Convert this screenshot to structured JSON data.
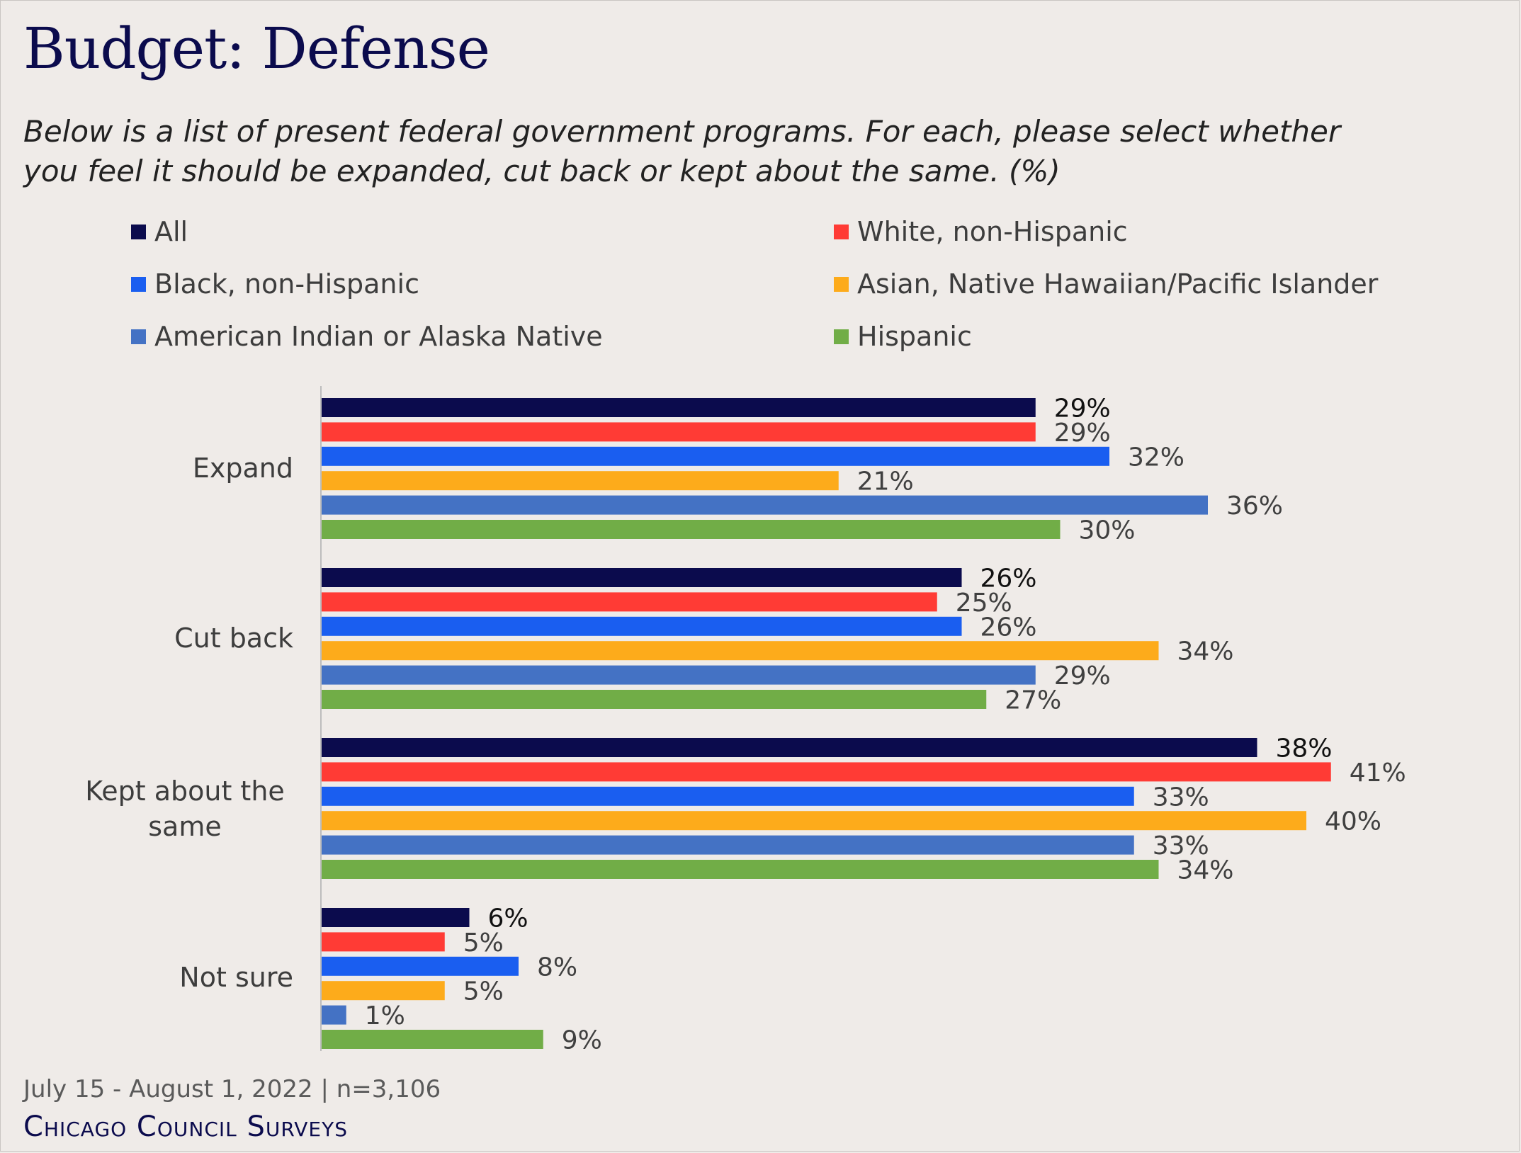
{
  "title": "Budget: Defense",
  "subtitle_lines": [
    "Below is a list of present federal government programs. For each, please select whether",
    "you feel it should be expanded, cut back or kept about the same. (%)"
  ],
  "footer": {
    "date_sample": "July 15 - August 1, 2022 | n=3,106",
    "brand": "Chicago Council Surveys"
  },
  "chart_data": {
    "type": "bar",
    "orientation": "horizontal",
    "categories": [
      "Expand",
      "Cut back",
      "Kept about the same",
      "Not sure"
    ],
    "series": [
      {
        "name": "All",
        "color": "#0b0b4d",
        "values": [
          29,
          26,
          38,
          6
        ]
      },
      {
        "name": "White, non-Hispanic",
        "color": "#ff3b35",
        "values": [
          29,
          25,
          41,
          5
        ]
      },
      {
        "name": "Black, non-Hispanic",
        "color": "#1a5ef0",
        "values": [
          32,
          26,
          33,
          8
        ]
      },
      {
        "name": "Asian, Native Hawaiian/Pacific Islander",
        "color": "#fdab1b",
        "values": [
          21,
          34,
          40,
          5
        ]
      },
      {
        "name": "American Indian or Alaska Native",
        "color": "#4472c4",
        "values": [
          36,
          29,
          33,
          1
        ]
      },
      {
        "name": "Hispanic",
        "color": "#71ad47",
        "values": [
          30,
          27,
          34,
          9
        ]
      }
    ],
    "value_suffix": "%",
    "xlim": [
      0,
      41
    ],
    "grid": false,
    "legend": "top"
  }
}
